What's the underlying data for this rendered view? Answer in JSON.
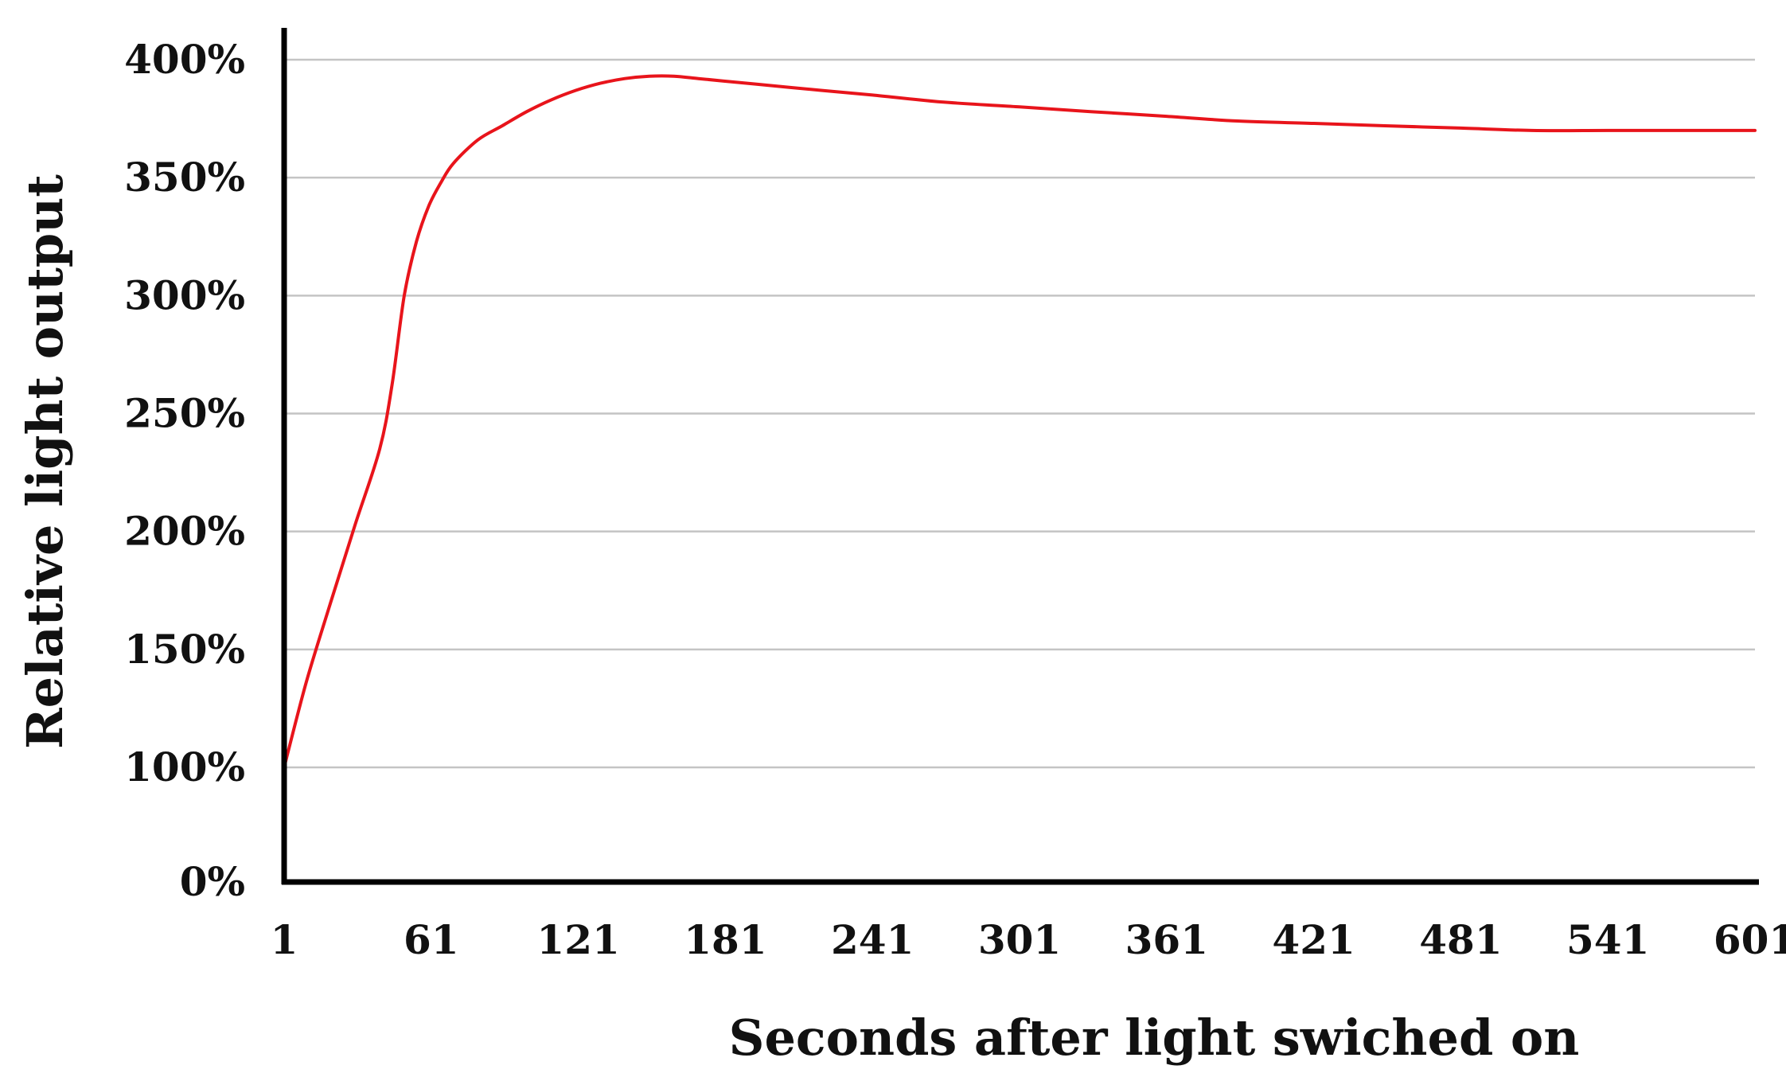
{
  "chart_data": {
    "type": "line",
    "xlabel": "Seconds after light swiched on",
    "ylabel": "Relative light output",
    "xlim": [
      1,
      601
    ],
    "ylim": [
      0,
      400
    ],
    "x_ticks": [
      1,
      61,
      121,
      181,
      241,
      301,
      361,
      421,
      481,
      541,
      601
    ],
    "x_tick_labels": [
      "1",
      "61",
      "121",
      "181",
      "241",
      "301",
      "361",
      "421",
      "481",
      "541",
      "601"
    ],
    "y_ticks": [
      0,
      100,
      150,
      200,
      250,
      300,
      350,
      400
    ],
    "y_tick_labels": [
      "0%",
      "100%",
      "150%",
      "200%",
      "250%",
      "300%",
      "350%",
      "400%"
    ],
    "grid": true,
    "line_color": "#e8141b",
    "series": [
      {
        "x": [
          1,
          10,
          20,
          30,
          40,
          45,
          50,
          55,
          60,
          65,
          70,
          80,
          90,
          100,
          110,
          120,
          130,
          140,
          150,
          160,
          170,
          180,
          200,
          220,
          241,
          270,
          301,
          330,
          361,
          390,
          421,
          450,
          481,
          510,
          541,
          570,
          601
        ],
        "y": [
          100,
          136,
          170,
          203,
          235,
          262,
          300,
          323,
          338,
          348,
          356,
          366,
          372,
          378,
          383,
          387,
          390,
          392,
          393,
          393,
          392,
          391,
          389,
          387,
          385,
          382,
          380,
          378,
          376,
          374,
          373,
          372,
          371,
          370,
          370,
          370,
          370
        ]
      }
    ]
  }
}
